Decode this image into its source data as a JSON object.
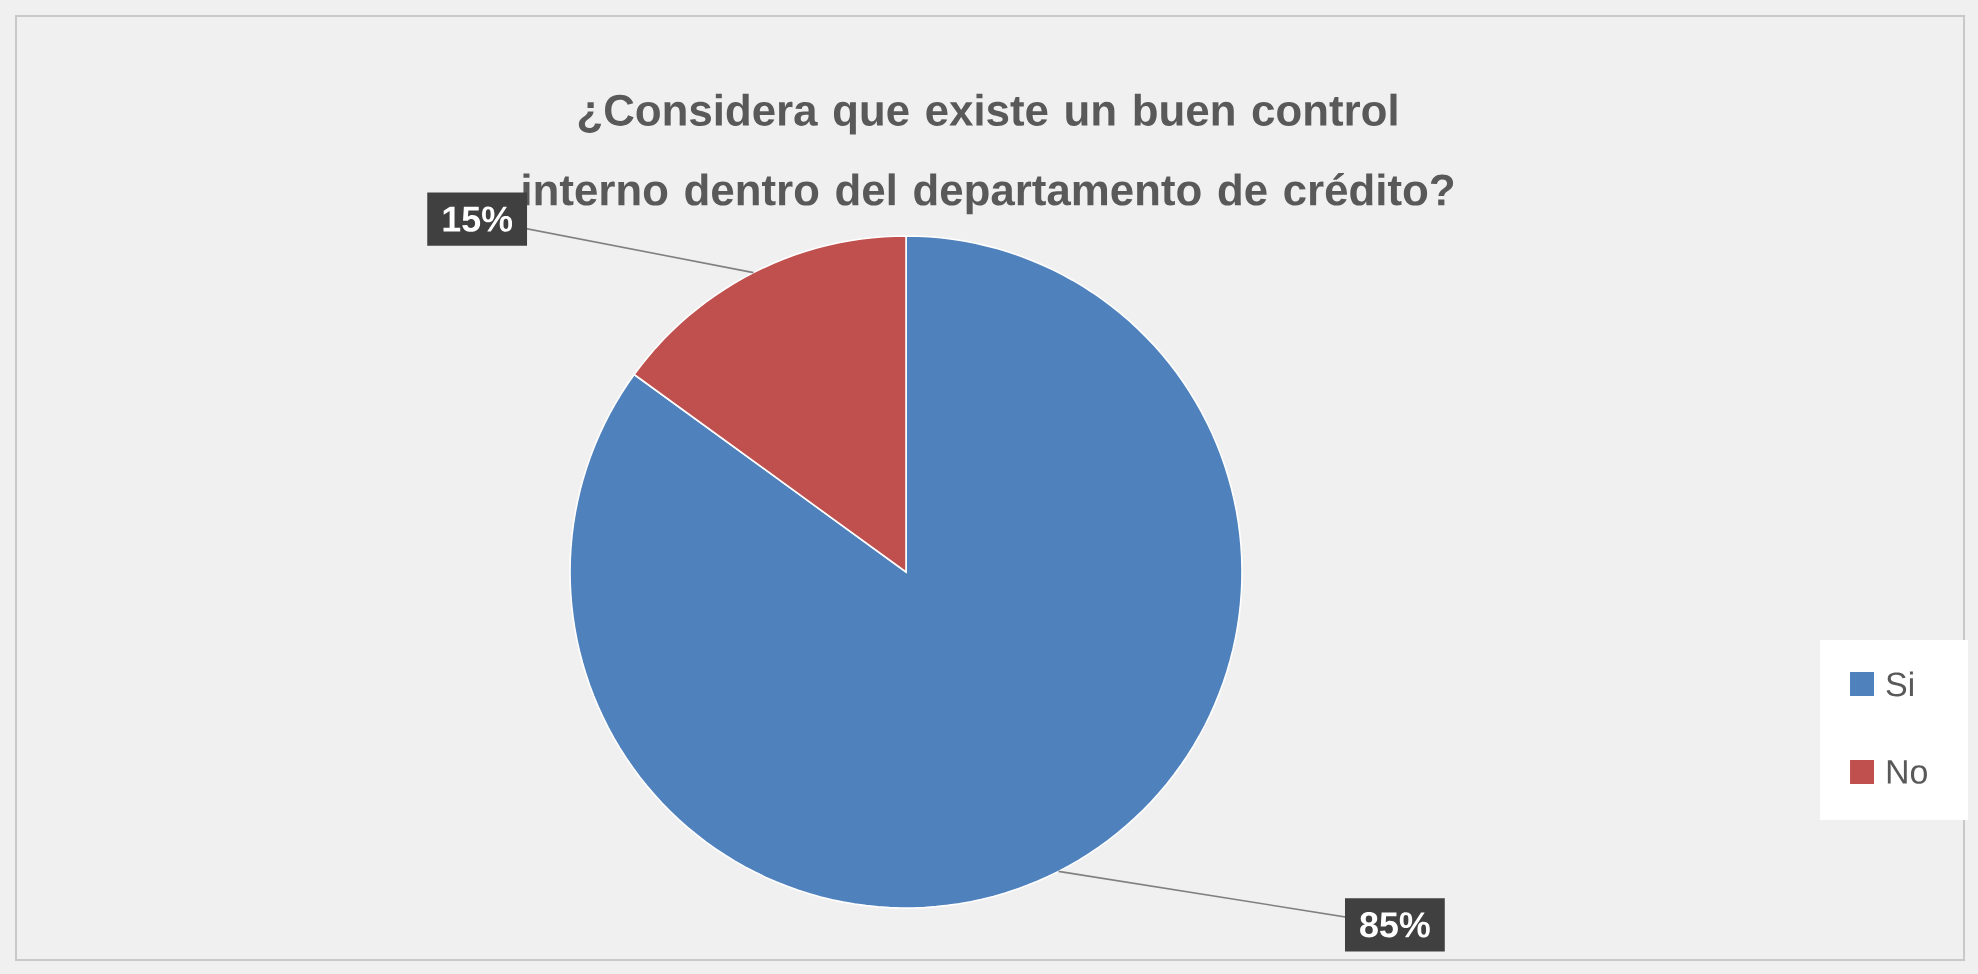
{
  "chart_data": {
    "type": "pie",
    "title": "¿Considera que existe un buen control interno dentro del departamento de crédito?",
    "categories": [
      "Si",
      "No"
    ],
    "values": [
      85,
      15
    ],
    "colors": [
      "#4f81bd",
      "#c0504d"
    ],
    "value_labels": [
      "85%",
      "15%"
    ],
    "legend": "right"
  }
}
